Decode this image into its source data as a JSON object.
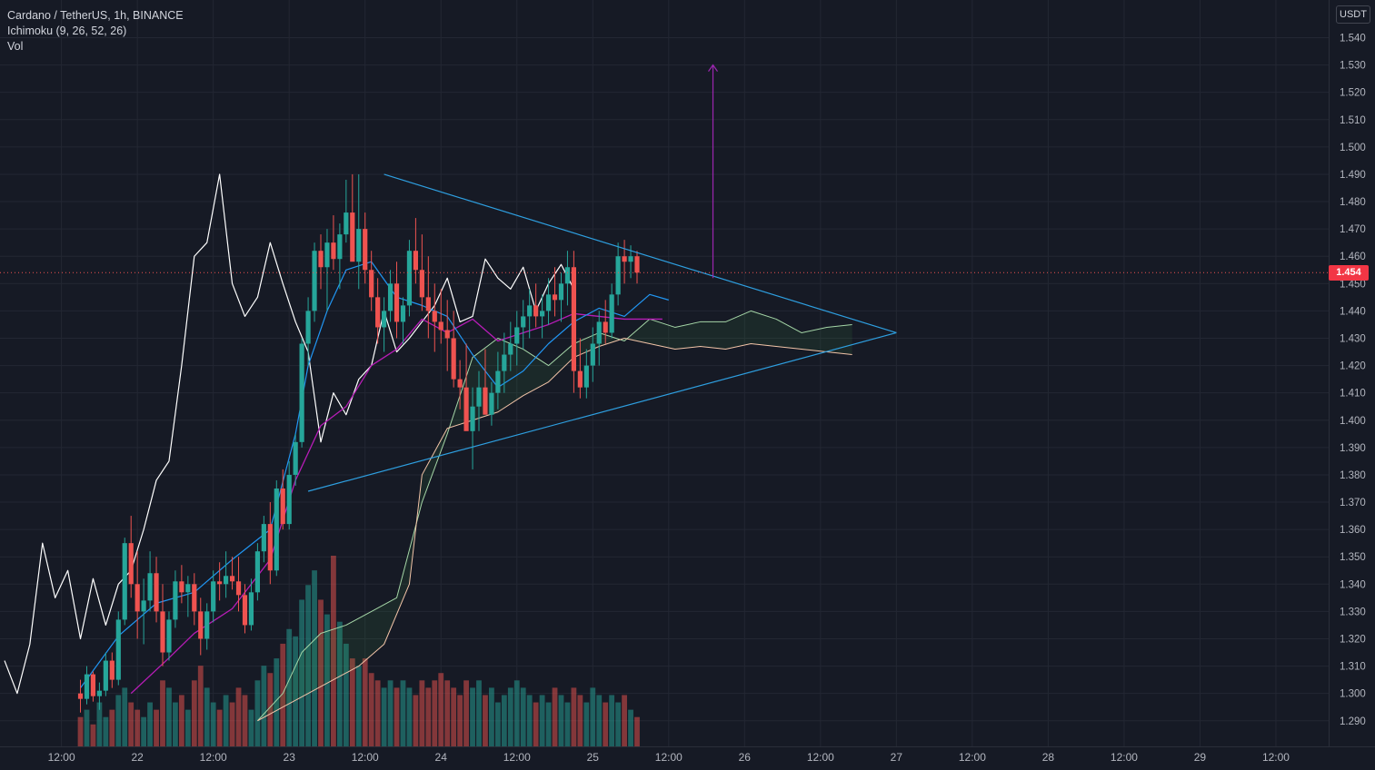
{
  "header": {
    "symbol": "Cardano / TetherUS, 1h, BINANCE",
    "ichimoku": "Ichimoku (9, 26, 52, 26)",
    "volume": "Vol"
  },
  "currency": "USDT",
  "last_price": "1.454",
  "colors": {
    "background": "#161a25",
    "grid": "#232733",
    "up": "#26a69a",
    "down": "#ef5350",
    "tenkan": "#2196f3",
    "kijun": "#b71cb7",
    "chikou": "#ffffff",
    "span_a": "#a5d6a7",
    "span_b": "#f2c4a8",
    "triangle": "#2e9fe0",
    "target_arrow": "#9c27b0",
    "price_line": "#ef5350"
  },
  "chart_data": {
    "type": "candlestick",
    "title": "Cardano / TetherUS, 1h, BINANCE",
    "y_axis": {
      "unit": "USDT",
      "range": [
        1.282,
        1.548
      ],
      "ticks": [
        "1.540",
        "1.530",
        "1.520",
        "1.510",
        "1.500",
        "1.490",
        "1.480",
        "1.470",
        "1.460",
        "1.450",
        "1.440",
        "1.430",
        "1.420",
        "1.410",
        "1.400",
        "1.390",
        "1.380",
        "1.370",
        "1.360",
        "1.350",
        "1.340",
        "1.330",
        "1.320",
        "1.310",
        "1.300",
        "1.290"
      ]
    },
    "x_axis": {
      "ticks": [
        {
          "label": "12:00",
          "bar": 9
        },
        {
          "label": "22",
          "bar": 21
        },
        {
          "label": "12:00",
          "bar": 33
        },
        {
          "label": "23",
          "bar": 45
        },
        {
          "label": "12:00",
          "bar": 57
        },
        {
          "label": "24",
          "bar": 69
        },
        {
          "label": "12:00",
          "bar": 81
        },
        {
          "label": "25",
          "bar": 93
        },
        {
          "label": "12:00",
          "bar": 105
        },
        {
          "label": "26",
          "bar": 117
        },
        {
          "label": "12:00",
          "bar": 129
        },
        {
          "label": "27",
          "bar": 141
        },
        {
          "label": "12:00",
          "bar": 153
        },
        {
          "label": "28",
          "bar": 165
        },
        {
          "label": "12:00",
          "bar": 177
        },
        {
          "label": "29",
          "bar": 189
        },
        {
          "label": "12:00",
          "bar": 201
        }
      ]
    },
    "candles_bar_start": 12,
    "candles_ohlc": [
      [
        1.3,
        1.305,
        1.293,
        1.298
      ],
      [
        1.298,
        1.31,
        1.296,
        1.307
      ],
      [
        1.307,
        1.308,
        1.297,
        1.299
      ],
      [
        1.299,
        1.304,
        1.294,
        1.301
      ],
      [
        1.301,
        1.315,
        1.299,
        1.312
      ],
      [
        1.312,
        1.315,
        1.302,
        1.305
      ],
      [
        1.305,
        1.33,
        1.303,
        1.327
      ],
      [
        1.327,
        1.357,
        1.325,
        1.355
      ],
      [
        1.355,
        1.365,
        1.335,
        1.34
      ],
      [
        1.34,
        1.352,
        1.32,
        1.33
      ],
      [
        1.33,
        1.342,
        1.318,
        1.334
      ],
      [
        1.334,
        1.352,
        1.33,
        1.344
      ],
      [
        1.344,
        1.35,
        1.326,
        1.33
      ],
      [
        1.33,
        1.34,
        1.31,
        1.315
      ],
      [
        1.315,
        1.33,
        1.312,
        1.327
      ],
      [
        1.327,
        1.345,
        1.324,
        1.341
      ],
      [
        1.341,
        1.347,
        1.333,
        1.337
      ],
      [
        1.337,
        1.343,
        1.328,
        1.34
      ],
      [
        1.34,
        1.344,
        1.325,
        1.33
      ],
      [
        1.33,
        1.335,
        1.314,
        1.32
      ],
      [
        1.32,
        1.333,
        1.316,
        1.33
      ],
      [
        1.33,
        1.345,
        1.326,
        1.341
      ],
      [
        1.341,
        1.348,
        1.334,
        1.34
      ],
      [
        1.34,
        1.352,
        1.335,
        1.343
      ],
      [
        1.343,
        1.35,
        1.338,
        1.341
      ],
      [
        1.341,
        1.35,
        1.33,
        1.336
      ],
      [
        1.336,
        1.34,
        1.322,
        1.325
      ],
      [
        1.325,
        1.342,
        1.323,
        1.337
      ],
      [
        1.337,
        1.355,
        1.334,
        1.352
      ],
      [
        1.352,
        1.365,
        1.348,
        1.362
      ],
      [
        1.362,
        1.37,
        1.34,
        1.345
      ],
      [
        1.345,
        1.378,
        1.343,
        1.375
      ],
      [
        1.375,
        1.382,
        1.36,
        1.362
      ],
      [
        1.362,
        1.385,
        1.36,
        1.38
      ],
      [
        1.38,
        1.395,
        1.376,
        1.392
      ],
      [
        1.392,
        1.43,
        1.39,
        1.428
      ],
      [
        1.428,
        1.445,
        1.42,
        1.44
      ],
      [
        1.44,
        1.465,
        1.436,
        1.462
      ],
      [
        1.462,
        1.468,
        1.448,
        1.456
      ],
      [
        1.456,
        1.47,
        1.44,
        1.465
      ],
      [
        1.465,
        1.475,
        1.455,
        1.459
      ],
      [
        1.459,
        1.472,
        1.448,
        1.468
      ],
      [
        1.468,
        1.488,
        1.465,
        1.476
      ],
      [
        1.476,
        1.49,
        1.47,
        1.458
      ],
      [
        1.458,
        1.49,
        1.448,
        1.47
      ],
      [
        1.47,
        1.476,
        1.45,
        1.455
      ],
      [
        1.455,
        1.462,
        1.44,
        1.445
      ],
      [
        1.445,
        1.452,
        1.428,
        1.434
      ],
      [
        1.434,
        1.445,
        1.425,
        1.44
      ],
      [
        1.44,
        1.455,
        1.436,
        1.45
      ],
      [
        1.45,
        1.458,
        1.43,
        1.436
      ],
      [
        1.436,
        1.445,
        1.428,
        1.442
      ],
      [
        1.442,
        1.466,
        1.438,
        1.462
      ],
      [
        1.462,
        1.474,
        1.45,
        1.455
      ],
      [
        1.455,
        1.468,
        1.44,
        1.445
      ],
      [
        1.445,
        1.46,
        1.43,
        1.44
      ],
      [
        1.44,
        1.45,
        1.425,
        1.436
      ],
      [
        1.436,
        1.448,
        1.428,
        1.433
      ],
      [
        1.433,
        1.444,
        1.418,
        1.43
      ],
      [
        1.43,
        1.44,
        1.412,
        1.415
      ],
      [
        1.415,
        1.422,
        1.404,
        1.412
      ],
      [
        1.412,
        1.428,
        1.398,
        1.396
      ],
      [
        1.396,
        1.412,
        1.382,
        1.405
      ],
      [
        1.405,
        1.418,
        1.396,
        1.412
      ],
      [
        1.412,
        1.426,
        1.404,
        1.402
      ],
      [
        1.402,
        1.414,
        1.398,
        1.41
      ],
      [
        1.41,
        1.425,
        1.404,
        1.418
      ],
      [
        1.418,
        1.432,
        1.41,
        1.424
      ],
      [
        1.424,
        1.436,
        1.418,
        1.428
      ],
      [
        1.428,
        1.44,
        1.42,
        1.434
      ],
      [
        1.434,
        1.444,
        1.426,
        1.438
      ],
      [
        1.438,
        1.448,
        1.43,
        1.442
      ],
      [
        1.442,
        1.45,
        1.434,
        1.438
      ],
      [
        1.438,
        1.446,
        1.43,
        1.44
      ],
      [
        1.44,
        1.452,
        1.435,
        1.446
      ],
      [
        1.446,
        1.456,
        1.438,
        1.444
      ],
      [
        1.444,
        1.454,
        1.436,
        1.45
      ],
      [
        1.45,
        1.462,
        1.442,
        1.456
      ],
      [
        1.456,
        1.462,
        1.41,
        1.418
      ],
      [
        1.418,
        1.43,
        1.408,
        1.412
      ],
      [
        1.412,
        1.426,
        1.408,
        1.42
      ],
      [
        1.42,
        1.434,
        1.414,
        1.428
      ],
      [
        1.428,
        1.44,
        1.42,
        1.436
      ],
      [
        1.436,
        1.444,
        1.428,
        1.432
      ],
      [
        1.432,
        1.45,
        1.43,
        1.446
      ],
      [
        1.446,
        1.465,
        1.442,
        1.46
      ],
      [
        1.46,
        1.466,
        1.45,
        1.458
      ],
      [
        1.458,
        1.464,
        1.452,
        1.46
      ],
      [
        1.46,
        1.462,
        1.45,
        1.454
      ]
    ],
    "volume": [
      4,
      5,
      3,
      6,
      4,
      5,
      7,
      8,
      6,
      5,
      4,
      6,
      5,
      9,
      8,
      6,
      7,
      5,
      9,
      11,
      8,
      6,
      5,
      7,
      6,
      8,
      7,
      5,
      9,
      11,
      10,
      12,
      14,
      16,
      15,
      20,
      22,
      24,
      20,
      18,
      26,
      17,
      14,
      12,
      11,
      12,
      10,
      9,
      8,
      9,
      8,
      9,
      8,
      7,
      9,
      8,
      9,
      10,
      9,
      8,
      7,
      9,
      8,
      9,
      7,
      8,
      6,
      7,
      8,
      9,
      8,
      7,
      6,
      7,
      6,
      8,
      7,
      6,
      8,
      7,
      6,
      8,
      7,
      6,
      7,
      6,
      7,
      5,
      4
    ],
    "volume_colors": "matches candle direction",
    "tenkan_sen": [
      [
        12,
        1.302
      ],
      [
        18,
        1.321
      ],
      [
        24,
        1.333
      ],
      [
        30,
        1.337
      ],
      [
        36,
        1.349
      ],
      [
        42,
        1.36
      ],
      [
        46,
        1.395
      ],
      [
        48,
        1.42
      ],
      [
        51,
        1.44
      ],
      [
        54,
        1.455
      ],
      [
        58,
        1.458
      ],
      [
        62,
        1.445
      ],
      [
        66,
        1.442
      ],
      [
        70,
        1.438
      ],
      [
        74,
        1.424
      ],
      [
        78,
        1.412
      ],
      [
        82,
        1.418
      ],
      [
        86,
        1.428
      ],
      [
        90,
        1.436
      ],
      [
        94,
        1.441
      ],
      [
        98,
        1.438
      ],
      [
        102,
        1.446
      ],
      [
        105,
        1.444
      ]
    ],
    "kijun_sen": [
      [
        20,
        1.3
      ],
      [
        26,
        1.313
      ],
      [
        30,
        1.322
      ],
      [
        36,
        1.331
      ],
      [
        42,
        1.349
      ],
      [
        46,
        1.378
      ],
      [
        50,
        1.398
      ],
      [
        54,
        1.405
      ],
      [
        58,
        1.42
      ],
      [
        62,
        1.426
      ],
      [
        66,
        1.437
      ],
      [
        70,
        1.432
      ],
      [
        74,
        1.437
      ],
      [
        78,
        1.429
      ],
      [
        82,
        1.432
      ],
      [
        86,
        1.435
      ],
      [
        90,
        1.439
      ],
      [
        94,
        1.438
      ],
      [
        98,
        1.437
      ],
      [
        102,
        1.437
      ],
      [
        104,
        1.437
      ]
    ],
    "chikou_span": [
      [
        0,
        1.312
      ],
      [
        2,
        1.3
      ],
      [
        4,
        1.318
      ],
      [
        6,
        1.355
      ],
      [
        8,
        1.335
      ],
      [
        10,
        1.345
      ],
      [
        12,
        1.32
      ],
      [
        14,
        1.342
      ],
      [
        16,
        1.325
      ],
      [
        18,
        1.34
      ],
      [
        20,
        1.345
      ],
      [
        22,
        1.36
      ],
      [
        24,
        1.378
      ],
      [
        26,
        1.385
      ],
      [
        28,
        1.42
      ],
      [
        30,
        1.46
      ],
      [
        32,
        1.465
      ],
      [
        34,
        1.49
      ],
      [
        36,
        1.45
      ],
      [
        38,
        1.438
      ],
      [
        40,
        1.445
      ],
      [
        42,
        1.465
      ],
      [
        44,
        1.45
      ],
      [
        46,
        1.436
      ],
      [
        48,
        1.425
      ],
      [
        50,
        1.392
      ],
      [
        52,
        1.41
      ],
      [
        54,
        1.402
      ],
      [
        56,
        1.415
      ],
      [
        58,
        1.42
      ],
      [
        60,
        1.44
      ],
      [
        62,
        1.425
      ],
      [
        64,
        1.43
      ],
      [
        66,
        1.436
      ],
      [
        68,
        1.442
      ],
      [
        70,
        1.452
      ],
      [
        72,
        1.436
      ],
      [
        74,
        1.438
      ],
      [
        76,
        1.459
      ],
      [
        78,
        1.452
      ],
      [
        80,
        1.448
      ],
      [
        82,
        1.456
      ],
      [
        84,
        1.44
      ],
      [
        86,
        1.45
      ],
      [
        88,
        1.457
      ],
      [
        90,
        1.448
      ]
    ],
    "senkou_span_a": [
      [
        40,
        1.29
      ],
      [
        44,
        1.3
      ],
      [
        47,
        1.315
      ],
      [
        50,
        1.322
      ],
      [
        54,
        1.325
      ],
      [
        58,
        1.33
      ],
      [
        62,
        1.335
      ],
      [
        66,
        1.37
      ],
      [
        70,
        1.395
      ],
      [
        74,
        1.423
      ],
      [
        78,
        1.43
      ],
      [
        82,
        1.426
      ],
      [
        86,
        1.42
      ],
      [
        90,
        1.428
      ],
      [
        94,
        1.432
      ],
      [
        98,
        1.429
      ],
      [
        102,
        1.437
      ],
      [
        106,
        1.434
      ],
      [
        110,
        1.436
      ],
      [
        114,
        1.436
      ],
      [
        118,
        1.44
      ],
      [
        122,
        1.437
      ],
      [
        126,
        1.432
      ],
      [
        130,
        1.434
      ],
      [
        134,
        1.435
      ]
    ],
    "senkou_span_b": [
      [
        40,
        1.29
      ],
      [
        44,
        1.295
      ],
      [
        48,
        1.3
      ],
      [
        52,
        1.305
      ],
      [
        56,
        1.31
      ],
      [
        60,
        1.318
      ],
      [
        64,
        1.34
      ],
      [
        66,
        1.38
      ],
      [
        70,
        1.397
      ],
      [
        74,
        1.4
      ],
      [
        78,
        1.403
      ],
      [
        82,
        1.409
      ],
      [
        86,
        1.414
      ],
      [
        90,
        1.423
      ],
      [
        94,
        1.427
      ],
      [
        98,
        1.43
      ],
      [
        102,
        1.428
      ],
      [
        106,
        1.426
      ],
      [
        110,
        1.427
      ],
      [
        114,
        1.426
      ],
      [
        118,
        1.428
      ],
      [
        122,
        1.427
      ],
      [
        126,
        1.426
      ],
      [
        130,
        1.425
      ],
      [
        134,
        1.424
      ]
    ],
    "annotations": {
      "triangle_upper": [
        [
          60,
          1.49
        ],
        [
          141,
          1.432
        ]
      ],
      "triangle_lower": [
        [
          48,
          1.374
        ],
        [
          141,
          1.432
        ]
      ],
      "target_arrow": [
        [
          112,
          1.452
        ],
        [
          112,
          1.53
        ]
      ]
    }
  }
}
